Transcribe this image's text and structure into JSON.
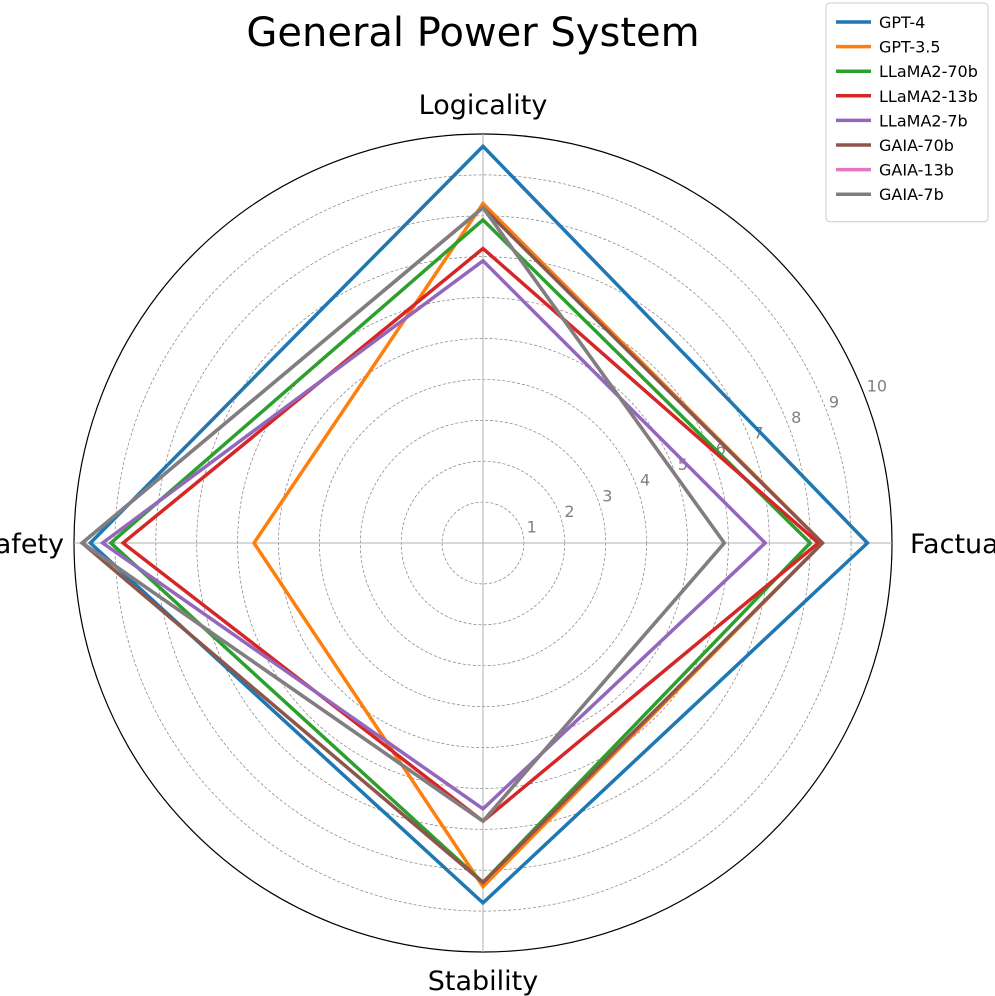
{
  "chart_data": {
    "type": "radar",
    "title": "General Power System",
    "axes": [
      "Factuality",
      "Logicality",
      "Safety",
      "Stability"
    ],
    "radial_ticks": [
      "1",
      "2",
      "3",
      "4",
      "5",
      "6",
      "7",
      "8",
      "9",
      "10"
    ],
    "rlim": [
      0,
      10
    ],
    "grid": true,
    "legend_position": "top-right",
    "series": [
      {
        "name": "GPT-4",
        "color": "#1f77b4",
        "values": [
          9.4,
          9.7,
          9.6,
          8.8
        ]
      },
      {
        "name": "GPT-3.5",
        "color": "#ff7f0e",
        "values": [
          8.3,
          8.3,
          5.6,
          8.4
        ]
      },
      {
        "name": "LLaMA2-70b",
        "color": "#2ca02c",
        "values": [
          8.0,
          7.9,
          9.1,
          8.3
        ]
      },
      {
        "name": "LLaMA2-13b",
        "color": "#d62728",
        "values": [
          8.2,
          7.2,
          8.8,
          6.8
        ]
      },
      {
        "name": "LLaMA2-7b",
        "color": "#9467bd",
        "values": [
          6.9,
          6.9,
          9.3,
          6.5
        ]
      },
      {
        "name": "GAIA-70b",
        "color": "#8c564b",
        "values": [
          8.3,
          8.2,
          9.8,
          8.3
        ]
      },
      {
        "name": "GAIA-13b",
        "color": "#e377c2",
        "values": [
          5.9,
          8.2,
          9.8,
          6.8
        ]
      },
      {
        "name": "GAIA-7b",
        "color": "#7f7f7f",
        "values": [
          5.9,
          8.2,
          9.8,
          6.8
        ]
      }
    ]
  }
}
